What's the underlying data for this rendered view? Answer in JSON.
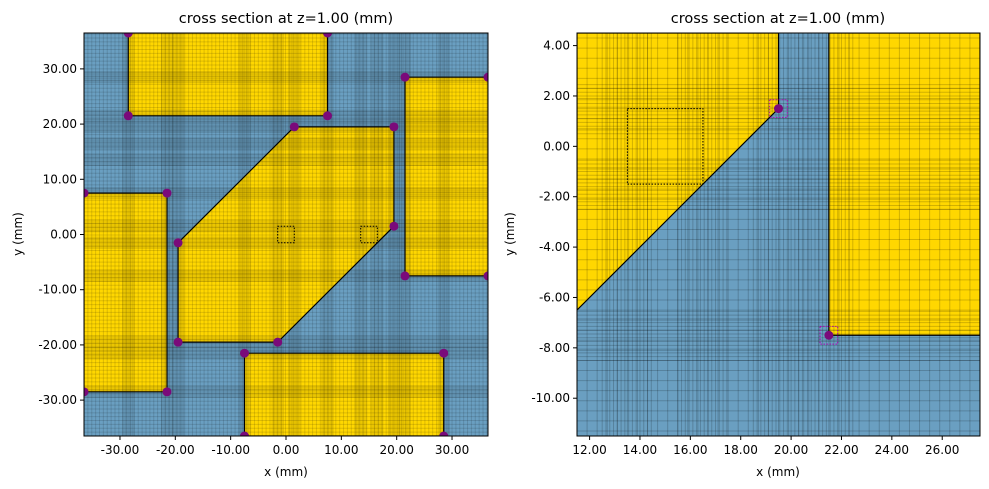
{
  "colors": {
    "background_medium": "#6a9fc1",
    "structure": "#ffd700",
    "edge": "#000000",
    "vertex": "#7a0a7a",
    "vertex_box": "#b000b0",
    "mesh_line": "#000000"
  },
  "chart_data": [
    {
      "type": "scatter",
      "title": "cross section at z=1.00 (mm)",
      "xlabel": "x (mm)",
      "ylabel": "y (mm)",
      "xlim": [
        -36.5,
        36.5
      ],
      "ylim": [
        -36.5,
        36.5
      ],
      "xticks": [
        -30,
        -20,
        -10,
        0,
        10,
        20,
        30
      ],
      "yticks": [
        -30,
        -20,
        -10,
        0,
        10,
        20,
        30
      ],
      "xtick_labels": [
        "-30.00",
        "-20.00",
        "-10.00",
        "0.00",
        "10.00",
        "20.00",
        "30.00"
      ],
      "ytick_labels": [
        "-30.00",
        "-20.00",
        "-10.00",
        "0.00",
        "10.00",
        "20.00",
        "30.00"
      ],
      "grid": true,
      "structures": [
        [
          [
            -28.5,
            21.5
          ],
          [
            7.5,
            21.5
          ],
          [
            7.5,
            36.5
          ],
          [
            -28.5,
            36.5
          ]
        ],
        [
          [
            21.5,
            -7.5
          ],
          [
            36.5,
            -7.5
          ],
          [
            36.5,
            28.5
          ],
          [
            21.5,
            28.5
          ]
        ],
        [
          [
            -36.5,
            -28.5
          ],
          [
            -21.5,
            -28.5
          ],
          [
            -21.5,
            7.5
          ],
          [
            -36.5,
            7.5
          ]
        ],
        [
          [
            -7.5,
            -36.5
          ],
          [
            28.5,
            -36.5
          ],
          [
            28.5,
            -21.5
          ],
          [
            -7.5,
            -21.5
          ]
        ],
        [
          [
            -19.5,
            -1.5
          ],
          [
            1.5,
            19.5
          ],
          [
            19.5,
            19.5
          ],
          [
            19.5,
            1.5
          ],
          [
            -1.5,
            -19.5
          ],
          [
            -19.5,
            -19.5
          ]
        ]
      ],
      "vertices": [
        [
          -28.5,
          36.5
        ],
        [
          7.5,
          36.5
        ],
        [
          -28.5,
          21.5
        ],
        [
          7.5,
          21.5
        ],
        [
          21.5,
          28.5
        ],
        [
          36.5,
          28.5
        ],
        [
          21.5,
          -7.5
        ],
        [
          36.5,
          -7.5
        ],
        [
          -36.5,
          7.5
        ],
        [
          -21.5,
          7.5
        ],
        [
          -36.5,
          -28.5
        ],
        [
          -21.5,
          -28.5
        ],
        [
          -7.5,
          -21.5
        ],
        [
          28.5,
          -21.5
        ],
        [
          -7.5,
          -36.5
        ],
        [
          28.5,
          -36.5
        ],
        [
          1.5,
          19.5
        ],
        [
          19.5,
          19.5
        ],
        [
          -19.5,
          -1.5
        ],
        [
          19.5,
          1.5
        ],
        [
          -19.5,
          -19.5
        ],
        [
          -1.5,
          -19.5
        ]
      ],
      "dotted_boxes": [
        [
          [
            -1.5,
            -1.5
          ],
          [
            1.5,
            1.5
          ]
        ],
        [
          [
            13.5,
            -1.5
          ],
          [
            16.5,
            1.5
          ]
        ]
      ],
      "vertex_boxes": []
    },
    {
      "type": "scatter",
      "title": "cross section at z=1.00 (mm)",
      "xlabel": "x (mm)",
      "ylabel": "y (mm)",
      "xlim": [
        11.5,
        27.5
      ],
      "ylim": [
        -11.5,
        4.5
      ],
      "xticks": [
        12,
        14,
        16,
        18,
        20,
        22,
        24,
        26
      ],
      "yticks": [
        -10,
        -8,
        -6,
        -4,
        -2,
        0,
        2,
        4
      ],
      "xtick_labels": [
        "12.00",
        "14.00",
        "16.00",
        "18.00",
        "20.00",
        "22.00",
        "24.00",
        "26.00"
      ],
      "ytick_labels": [
        "-10.00",
        "-8.00",
        "-6.00",
        "-4.00",
        "-2.00",
        "0.00",
        "2.00",
        "4.00"
      ],
      "grid": true,
      "structures": [
        [
          [
            -19.5,
            -1.5
          ],
          [
            1.5,
            19.5
          ],
          [
            19.5,
            19.5
          ],
          [
            19.5,
            1.5
          ],
          [
            -1.5,
            -19.5
          ],
          [
            -19.5,
            -19.5
          ]
        ],
        [
          [
            21.5,
            -7.5
          ],
          [
            36.5,
            -7.5
          ],
          [
            36.5,
            28.5
          ],
          [
            21.5,
            28.5
          ]
        ]
      ],
      "vertices": [
        [
          19.5,
          1.5
        ],
        [
          21.5,
          -7.5
        ]
      ],
      "dotted_boxes": [
        [
          [
            13.5,
            -1.5
          ],
          [
            16.5,
            1.5
          ]
        ]
      ],
      "vertex_boxes": [
        [
          [
            19.15,
            1.15
          ],
          [
            19.85,
            1.85
          ]
        ],
        [
          [
            21.15,
            -7.85
          ],
          [
            21.85,
            -7.15
          ]
        ]
      ]
    }
  ]
}
